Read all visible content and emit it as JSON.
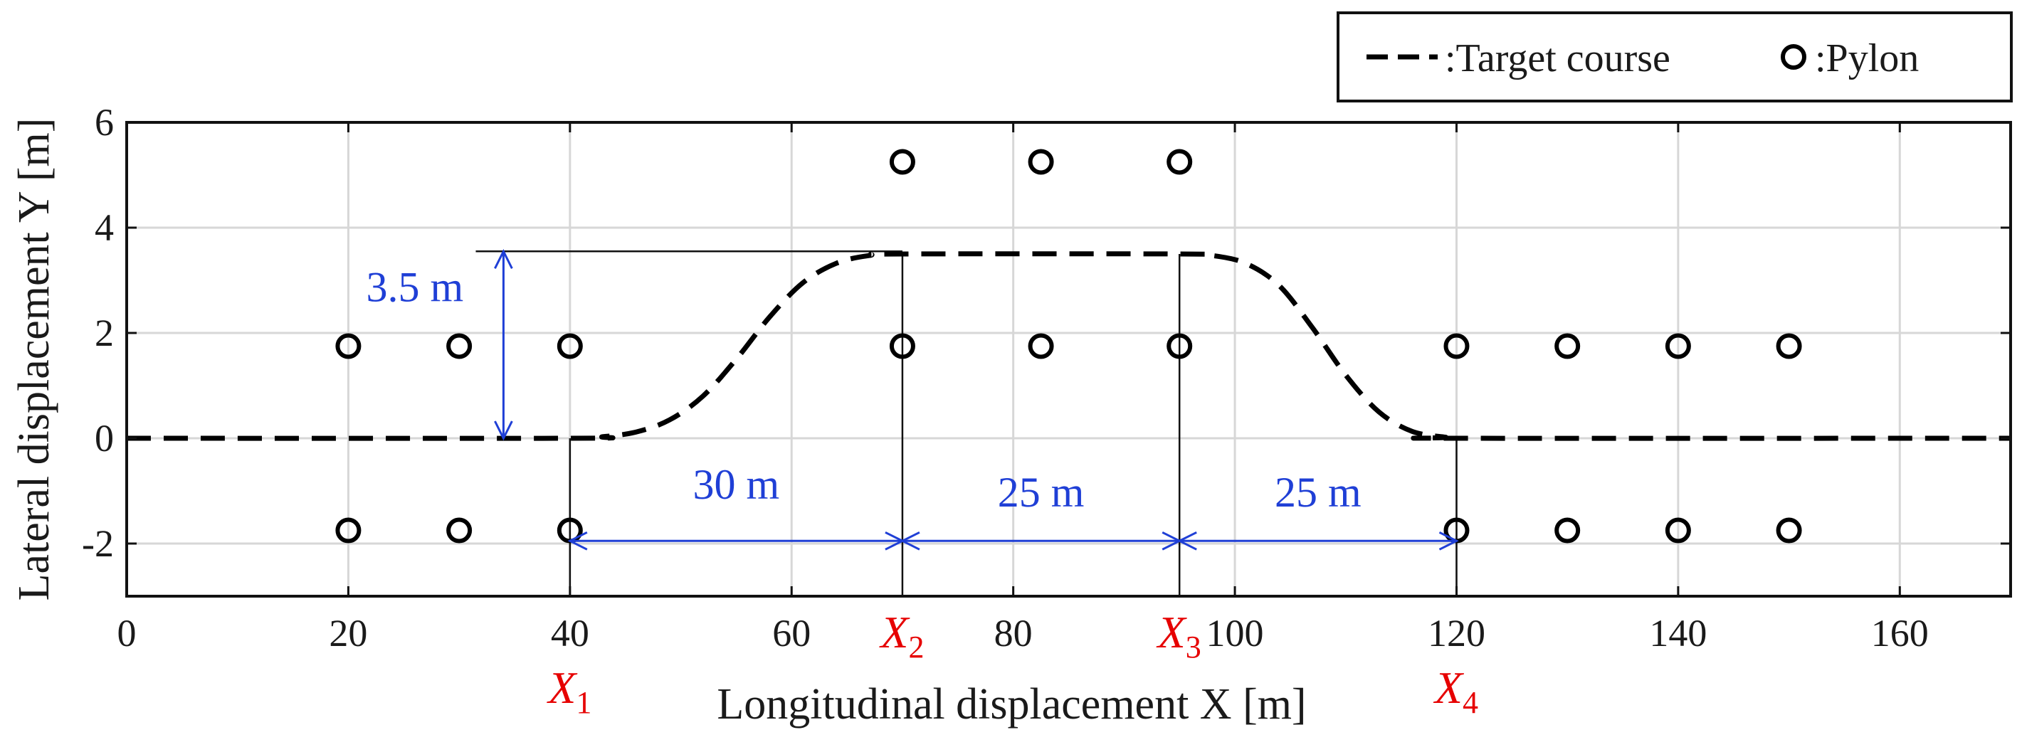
{
  "chart_data": {
    "type": "line",
    "xlabel": "Longitudinal displacement X [m]",
    "ylabel": "Lateral displacement Y [m]",
    "xlim": [
      0,
      170
    ],
    "ylim": [
      -3,
      6
    ],
    "xticks": [
      0,
      20,
      40,
      60,
      80,
      100,
      120,
      140,
      160
    ],
    "yticks": [
      -2,
      0,
      2,
      4,
      6
    ],
    "grid": true,
    "legend": {
      "placement": "top-right (outside plot area)",
      "entries": [
        {
          "label": ":Target course",
          "style": "dashed-line",
          "color": "#000000"
        },
        {
          "label": ":Pylon",
          "style": "circle-marker",
          "color": "#000000"
        }
      ]
    },
    "series": [
      {
        "name": "Target course",
        "style": "dashed",
        "color": "#000000",
        "x": [
          0,
          40,
          43,
          46,
          49,
          52,
          55,
          58,
          61,
          64,
          67,
          70,
          95,
          98,
          101,
          104,
          107,
          110,
          113,
          116,
          119,
          120,
          170
        ],
        "y": [
          0,
          0,
          0.03,
          0.12,
          0.35,
          0.8,
          1.5,
          2.3,
          2.95,
          3.32,
          3.47,
          3.5,
          3.5,
          3.47,
          3.32,
          2.9,
          2.1,
          1.2,
          0.5,
          0.13,
          0.02,
          0,
          0
        ]
      },
      {
        "name": "Pylon",
        "style": "marker",
        "color": "#000000",
        "points": [
          {
            "x": 20,
            "y": 1.75
          },
          {
            "x": 30,
            "y": 1.75
          },
          {
            "x": 40,
            "y": 1.75
          },
          {
            "x": 20,
            "y": -1.75
          },
          {
            "x": 30,
            "y": -1.75
          },
          {
            "x": 40,
            "y": -1.75
          },
          {
            "x": 70,
            "y": 5.25
          },
          {
            "x": 82.5,
            "y": 5.25
          },
          {
            "x": 95,
            "y": 5.25
          },
          {
            "x": 70,
            "y": 1.75
          },
          {
            "x": 82.5,
            "y": 1.75
          },
          {
            "x": 95,
            "y": 1.75
          },
          {
            "x": 120,
            "y": 1.75
          },
          {
            "x": 130,
            "y": 1.75
          },
          {
            "x": 140,
            "y": 1.75
          },
          {
            "x": 150,
            "y": 1.75
          },
          {
            "x": 120,
            "y": -1.75
          },
          {
            "x": 130,
            "y": -1.75
          },
          {
            "x": 140,
            "y": -1.75
          },
          {
            "x": 150,
            "y": -1.75
          }
        ]
      }
    ],
    "reference_lines": {
      "vertical": [
        {
          "x": 40,
          "y_from": -3,
          "y_to": 0
        },
        {
          "x": 70,
          "y_from": -3,
          "y_to": 3.5
        },
        {
          "x": 95,
          "y_from": -3,
          "y_to": 3.5
        },
        {
          "x": 120,
          "y_from": -3,
          "y_to": 0
        }
      ],
      "horizontal": [
        {
          "y": 3.55,
          "x_from": 31.5,
          "x_to": 70
        }
      ]
    },
    "dimension_annotations": [
      {
        "label": "3.5 m",
        "orientation": "vertical",
        "at_x": 34,
        "from": 0,
        "to": 3.55,
        "label_x": 26,
        "label_y": 2.6,
        "color": "#1f3fd6"
      },
      {
        "label": "30 m",
        "orientation": "horizontal",
        "at_y": -1.95,
        "from": 40,
        "to": 70,
        "label_x": 55,
        "label_y": -1.15,
        "color": "#1f3fd6"
      },
      {
        "label": "25 m",
        "orientation": "horizontal",
        "at_y": -1.95,
        "from": 70,
        "to": 95,
        "label_x": 82.5,
        "label_y": -1.3,
        "color": "#1f3fd6"
      },
      {
        "label": "25 m",
        "orientation": "horizontal",
        "at_y": -1.95,
        "from": 95,
        "to": 120,
        "label_x": 107.5,
        "label_y": -1.3,
        "color": "#1f3fd6"
      }
    ],
    "x_markers": [
      {
        "symbol": "X",
        "sub": "1",
        "x": 40,
        "row": 2,
        "color": "#e60000"
      },
      {
        "symbol": "X",
        "sub": "2",
        "x": 70,
        "row": 1,
        "color": "#e60000"
      },
      {
        "symbol": "X",
        "sub": "3",
        "x": 95,
        "row": 1,
        "color": "#e60000"
      },
      {
        "symbol": "X",
        "sub": "4",
        "x": 120,
        "row": 2,
        "color": "#e60000"
      }
    ]
  }
}
